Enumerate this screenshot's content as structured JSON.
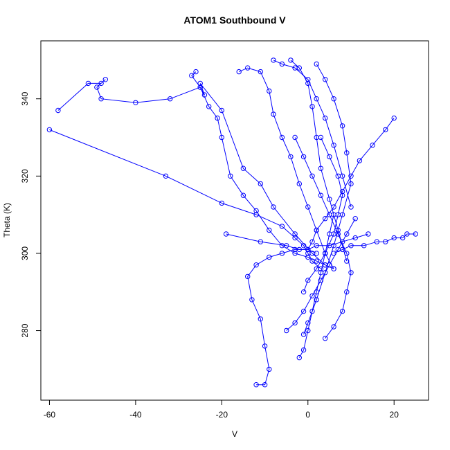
{
  "chart_data": {
    "type": "scatter",
    "title": "ATOM1 Southbound V",
    "xlabel": "V",
    "ylabel": "Theta (K)",
    "xlim": [
      -62,
      28
    ],
    "ylim": [
      262,
      355
    ],
    "xticks": [
      -60,
      -40,
      -20,
      0,
      20
    ],
    "yticks": [
      280,
      300,
      320,
      340
    ],
    "grid": false,
    "legend": "none",
    "connected": true,
    "series": [
      {
        "color": "#0000ff",
        "x": [
          -60,
          -33,
          -20,
          -12,
          -6,
          -3,
          -1,
          0,
          1,
          3
        ],
        "y": [
          332,
          320,
          313,
          310,
          307,
          304,
          302,
          300,
          298,
          296
        ]
      },
      {
        "color": "#0000ff",
        "x": [
          -58,
          -51,
          -48,
          -47,
          -49,
          -48,
          -40,
          -32,
          -25,
          -24,
          -25,
          -20,
          -15,
          -11,
          -8,
          -3,
          1,
          4
        ],
        "y": [
          337,
          344,
          344,
          345,
          343,
          340,
          339,
          340,
          343,
          341,
          344,
          337,
          322,
          318,
          312,
          305,
          300,
          297
        ]
      },
      {
        "color": "#0000ff",
        "x": [
          -26,
          -27,
          -25,
          -23,
          -21,
          -20,
          -18,
          -15,
          -12,
          -9,
          -6,
          -3,
          0,
          2,
          4,
          6
        ],
        "y": [
          347,
          346,
          343,
          338,
          335,
          330,
          320,
          315,
          311,
          306,
          302,
          300,
          299,
          298,
          297,
          296
        ]
      },
      {
        "color": "#0000ff",
        "x": [
          -19,
          -11,
          -5,
          -2,
          0,
          2,
          5,
          8,
          11,
          14
        ],
        "y": [
          305,
          303,
          302,
          301,
          301,
          302,
          302,
          303,
          304,
          305
        ]
      },
      {
        "color": "#0000ff",
        "x": [
          -16,
          -14,
          -11,
          -9,
          -8,
          -6,
          -4,
          -2,
          0,
          2,
          4,
          6
        ],
        "y": [
          347,
          348,
          347,
          342,
          336,
          330,
          325,
          318,
          312,
          306,
          300,
          296
        ]
      },
      {
        "color": "#0000ff",
        "x": [
          -12,
          -10,
          -9,
          -10,
          -11,
          -13,
          -14,
          -12,
          -9,
          -6,
          -3,
          0,
          2
        ],
        "y": [
          266,
          266,
          270,
          276,
          283,
          288,
          294,
          297,
          299,
          300,
          301,
          301,
          300
        ]
      },
      {
        "color": "#0000ff",
        "x": [
          -8,
          -6,
          -3,
          0,
          2,
          4,
          6,
          8,
          10
        ],
        "y": [
          350,
          349,
          348,
          345,
          340,
          335,
          328,
          320,
          312
        ]
      },
      {
        "color": "#0000ff",
        "x": [
          -4,
          -2,
          0,
          1,
          2,
          3,
          5,
          7,
          9
        ],
        "y": [
          350,
          348,
          344,
          338,
          330,
          322,
          314,
          306,
          298
        ]
      },
      {
        "color": "#0000ff",
        "x": [
          -2,
          -1,
          0,
          1,
          2,
          3,
          4,
          5,
          6
        ],
        "y": [
          273,
          275,
          280,
          285,
          290,
          295,
          300,
          305,
          310
        ]
      },
      {
        "color": "#0000ff",
        "x": [
          0,
          1,
          2,
          4,
          6,
          8,
          10,
          12,
          15,
          18,
          20
        ],
        "y": [
          301,
          303,
          306,
          309,
          312,
          316,
          320,
          324,
          328,
          332,
          335
        ]
      },
      {
        "color": "#0000ff",
        "x": [
          2,
          4,
          6,
          8,
          9,
          10,
          8,
          6,
          4,
          2,
          0,
          -1
        ],
        "y": [
          349,
          345,
          340,
          333,
          326,
          318,
          310,
          302,
          295,
          288,
          282,
          279
        ]
      },
      {
        "color": "#0000ff",
        "x": [
          6,
          8,
          10,
          13,
          16,
          18,
          20,
          22,
          23,
          25
        ],
        "y": [
          300,
          301,
          302,
          302,
          303,
          303,
          304,
          304,
          305,
          305
        ]
      },
      {
        "color": "#0000ff",
        "x": [
          -1,
          0,
          2,
          4,
          6,
          7,
          8,
          7,
          5,
          3
        ],
        "y": [
          290,
          293,
          296,
          300,
          305,
          310,
          315,
          320,
          325,
          330
        ]
      },
      {
        "color": "#0000ff",
        "x": [
          4,
          6,
          8,
          9,
          10,
          9,
          7,
          5,
          3,
          1,
          -1,
          -3
        ],
        "y": [
          278,
          281,
          285,
          290,
          295,
          300,
          305,
          310,
          315,
          320,
          325,
          330
        ]
      },
      {
        "color": "#0000ff",
        "x": [
          -5,
          -3,
          -1,
          1,
          3,
          5,
          7,
          9,
          11
        ],
        "y": [
          280,
          282,
          285,
          289,
          293,
          297,
          301,
          305,
          309
        ]
      }
    ]
  }
}
